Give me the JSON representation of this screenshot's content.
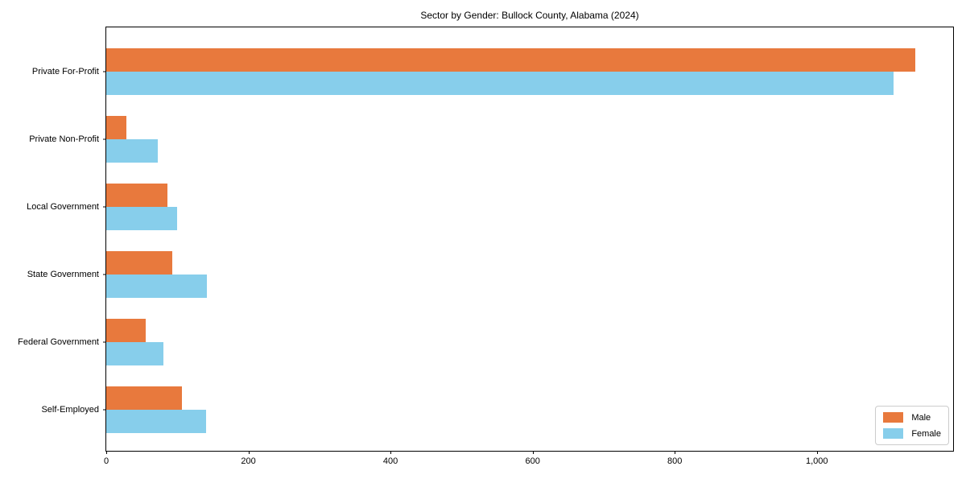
{
  "title": "Sector by Gender: Bullock County, Alabama (2024)",
  "chart_data": {
    "type": "bar",
    "orientation": "horizontal",
    "title": "Sector by Gender: Bullock County, Alabama (2024)",
    "categories": [
      "Private For-Profit",
      "Private Non-Profit",
      "Local Government",
      "State Government",
      "Federal Government",
      "Self-Employed"
    ],
    "series": [
      {
        "name": "Male",
        "color": "#e8793d",
        "values": [
          1138,
          28,
          86,
          93,
          55,
          106
        ]
      },
      {
        "name": "Female",
        "color": "#87ceeb",
        "values": [
          1108,
          72,
          100,
          142,
          80,
          140
        ]
      }
    ],
    "xlabel": "",
    "ylabel": "",
    "xlim": [
      0,
      1194
    ],
    "xticks": [
      0,
      200,
      400,
      600,
      800,
      1000
    ],
    "xtick_labels": [
      "0",
      "200",
      "400",
      "600",
      "800",
      "1,000"
    ],
    "grid": false,
    "legend": {
      "position": "lower right",
      "entries": [
        "Male",
        "Female"
      ]
    }
  }
}
